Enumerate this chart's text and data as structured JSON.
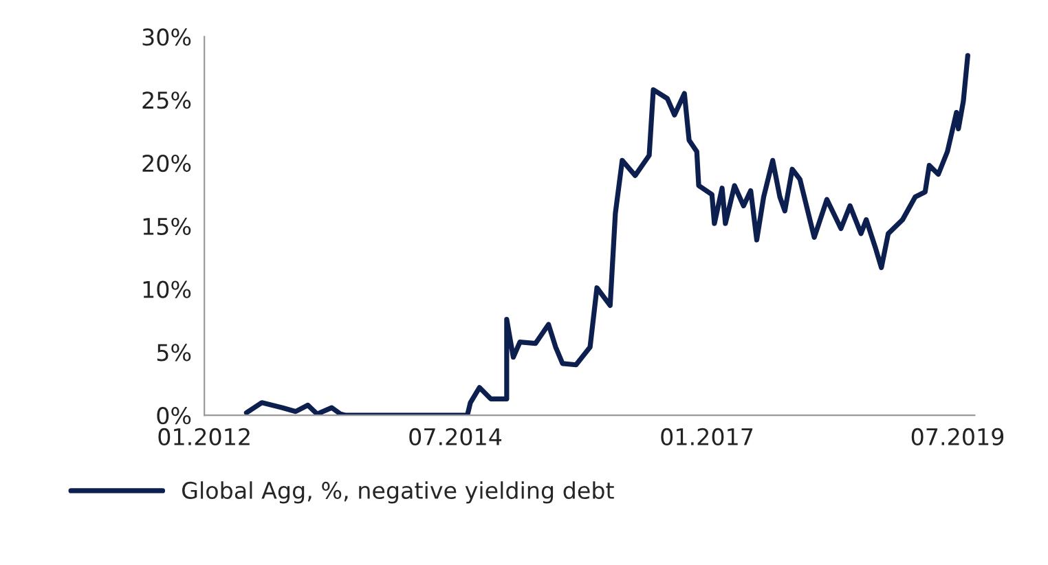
{
  "chart_data": {
    "type": "line",
    "x": [
      "2012-06-02",
      "2012-07-28",
      "2012-10-11",
      "2012-11-28",
      "2013-01-11",
      "2013-02-14",
      "2013-04-08",
      "2013-05-10",
      "2013-05-28",
      "2014-08-14",
      "2014-08-25",
      "2014-09-27",
      "2014-11-07",
      "2015-01-04",
      "2015-01-04",
      "2015-01-28",
      "2015-02-21",
      "2015-04-19",
      "2015-06-05",
      "2015-07-01",
      "2015-07-26",
      "2015-09-13",
      "2015-11-03",
      "2015-11-28",
      "2016-01-15",
      "2016-02-03",
      "2016-02-28",
      "2016-04-15",
      "2016-06-05",
      "2016-06-20",
      "2016-08-10",
      "2016-09-05",
      "2016-10-11",
      "2016-10-28",
      "2016-11-25",
      "2016-12-02",
      "2017-01-19",
      "2017-01-28",
      "2017-02-25",
      "2017-03-09",
      "2017-04-11",
      "2017-05-14",
      "2017-06-09",
      "2017-07-01",
      "2017-07-26",
      "2017-08-28",
      "2017-09-23",
      "2017-10-11",
      "2017-11-07",
      "2017-12-05",
      "2018-01-26",
      "2018-03-13",
      "2018-05-03",
      "2018-06-05",
      "2018-07-15",
      "2018-08-03",
      "2018-09-05",
      "2018-09-27",
      "2018-10-22",
      "2018-12-13",
      "2019-01-28",
      "2019-03-05",
      "2019-03-20",
      "2019-04-22",
      "2019-05-25",
      "2019-06-27",
      "2019-07-04",
      "2019-07-22",
      "2019-08-07"
    ],
    "series": [
      {
        "name": "Global Agg, %, negative yielding debt",
        "color": "#0d1f4f",
        "values": [
          0.2,
          1.0,
          0.6,
          0.3,
          0.8,
          0.1,
          0.6,
          0.1,
          0.0,
          0.0,
          1.0,
          2.2,
          1.3,
          1.3,
          7.6,
          4.6,
          5.8,
          5.7,
          7.2,
          5.4,
          4.1,
          4.0,
          5.4,
          10.1,
          8.7,
          16.0,
          20.2,
          19.0,
          20.6,
          25.8,
          25.1,
          23.8,
          25.5,
          21.8,
          20.9,
          18.2,
          17.5,
          15.2,
          18.0,
          15.2,
          18.2,
          16.6,
          17.8,
          13.9,
          17.3,
          20.2,
          17.3,
          16.2,
          19.5,
          18.7,
          14.1,
          17.1,
          14.8,
          16.6,
          14.4,
          15.5,
          13.3,
          11.7,
          14.4,
          15.5,
          17.3,
          17.7,
          19.8,
          19.1,
          20.9,
          24.0,
          22.7,
          24.9,
          28.5
        ]
      }
    ],
    "xlim": [
      "2012-01-01",
      "2019-09-01"
    ],
    "xticks": [
      {
        "value": "2012-01-01",
        "label": "01.2012"
      },
      {
        "value": "2014-07-01",
        "label": "07.2014"
      },
      {
        "value": "2017-01-01",
        "label": "01.2017"
      },
      {
        "value": "2019-07-01",
        "label": "07.2019"
      }
    ],
    "ylim": [
      0,
      30
    ],
    "yticks": [
      {
        "value": 0,
        "label": "0%"
      },
      {
        "value": 5,
        "label": "5%"
      },
      {
        "value": 10,
        "label": "10%"
      },
      {
        "value": 15,
        "label": "15%"
      },
      {
        "value": 20,
        "label": "20%"
      },
      {
        "value": 25,
        "label": "25%"
      },
      {
        "value": 30,
        "label": "30%"
      }
    ],
    "grid": false,
    "legend": "bottom left"
  }
}
